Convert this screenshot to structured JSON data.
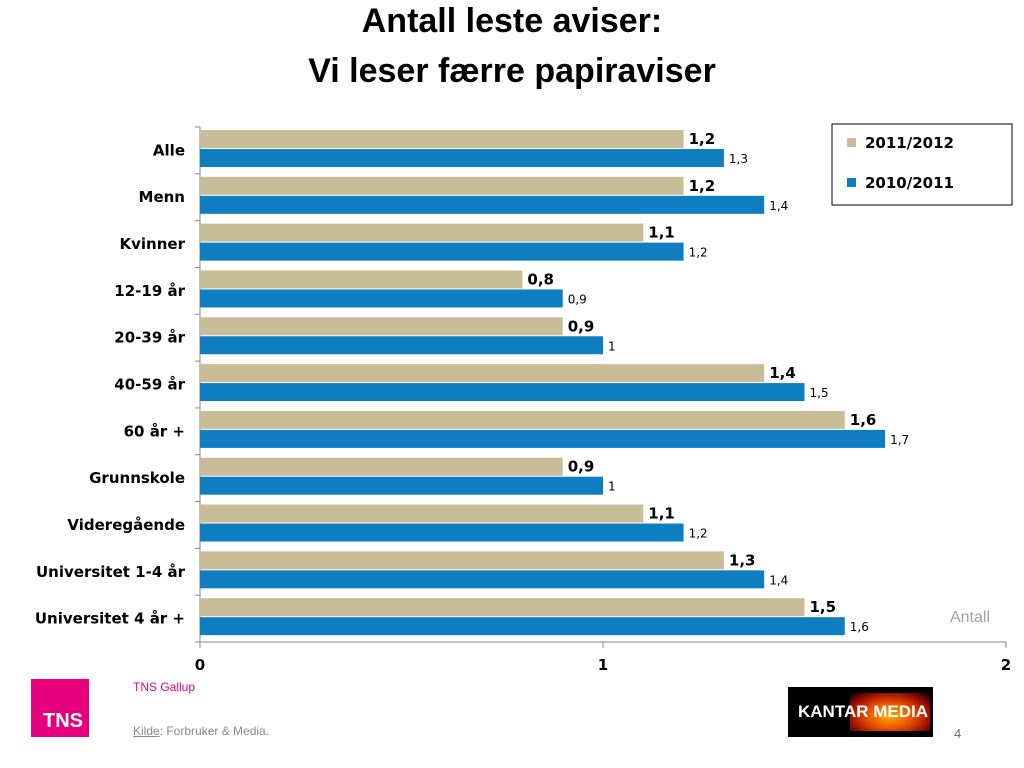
{
  "header": {
    "title_line1": "Antall leste aviser:",
    "title_line2": "Vi leser færre papiraviser"
  },
  "chart_data": {
    "type": "bar",
    "orientation": "horizontal",
    "categories": [
      "Alle",
      "Menn",
      "Kvinner",
      "12-19 år",
      "20-39 år",
      "40-59 år",
      "60 år +",
      "Grunnskole",
      "Videregående",
      "Universitet 1-4 år",
      "Universitet 4 år +"
    ],
    "series": [
      {
        "name": "2011/2012",
        "values": [
          1.2,
          1.2,
          1.1,
          0.8,
          0.9,
          1.4,
          1.6,
          0.9,
          1.1,
          1.3,
          1.5
        ],
        "labels": [
          "1,2",
          "1,2",
          "1,1",
          "0,8",
          "0,9",
          "1,4",
          "1,6",
          "0,9",
          "1,1",
          "1,3",
          "1,5"
        ],
        "color": "#c8bd97"
      },
      {
        "name": "2010/2011",
        "values": [
          1.3,
          1.4,
          1.2,
          0.9,
          1.0,
          1.5,
          1.7,
          1.0,
          1.2,
          1.4,
          1.6
        ],
        "labels": [
          "1,3",
          "1,4",
          "1,2",
          "0,9",
          "1",
          "1,5",
          "1,7",
          "1",
          "1,2",
          "1,4",
          "1,6"
        ],
        "color": "#0e7ec0"
      }
    ],
    "xlim": [
      0,
      2
    ],
    "x_ticks": [
      "0",
      "1",
      "2"
    ],
    "unit_label": "Antall",
    "legend_position": "top-right",
    "grid": false
  },
  "footer": {
    "logo_text": "TNS",
    "company": "TNS Gallup",
    "source_label": "Kilde",
    "source_text": ": Forbruker & Media.",
    "partner_logo_text_1": "KANTAR ",
    "partner_logo_text_2": "MEDIA",
    "page_number": "4"
  }
}
